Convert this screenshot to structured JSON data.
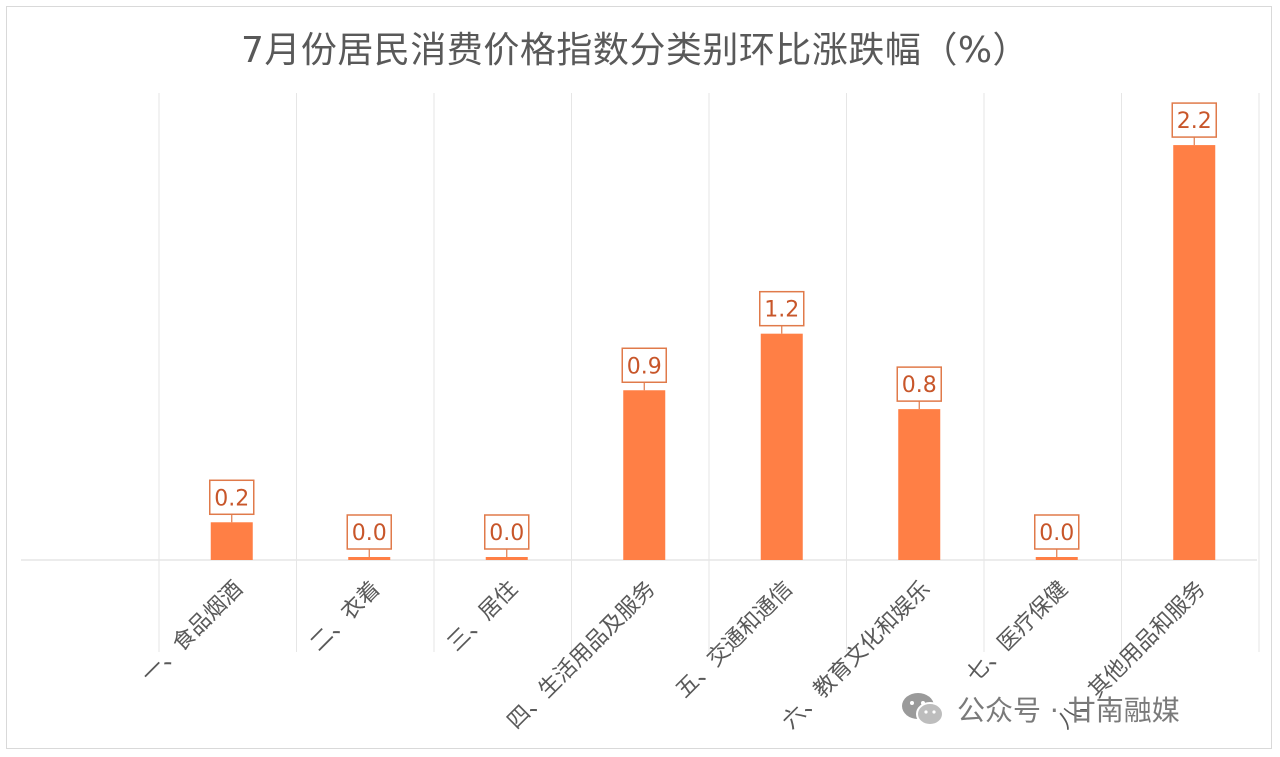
{
  "chart_data": {
    "type": "bar",
    "title": "7月份居民消费价格指数分类别环比涨跌幅（%）",
    "categories": [
      "一、食品烟酒",
      "二、衣着",
      "三、居住",
      "四、生活用品及服务",
      "五、交通和通信",
      "六、教育文化和娱乐",
      "七、医疗保健",
      "八、其他用品和服务"
    ],
    "values": [
      0.2,
      0.0,
      0.0,
      0.9,
      1.2,
      0.8,
      0.0,
      2.2
    ],
    "value_labels": [
      "0.2",
      "0.0",
      "0.0",
      "0.9",
      "1.2",
      "0.8",
      "0.0",
      "2.2"
    ],
    "ylim": [
      0,
      2.5
    ],
    "grid": true,
    "colors": {
      "bar": "#ff7f45",
      "label_text": "#c8562a",
      "label_border": "#e07a4a",
      "grid": "#e6e6e6"
    }
  },
  "watermark": {
    "icon": "wechat-icon",
    "text": "公众号 · 甘南融媒"
  }
}
